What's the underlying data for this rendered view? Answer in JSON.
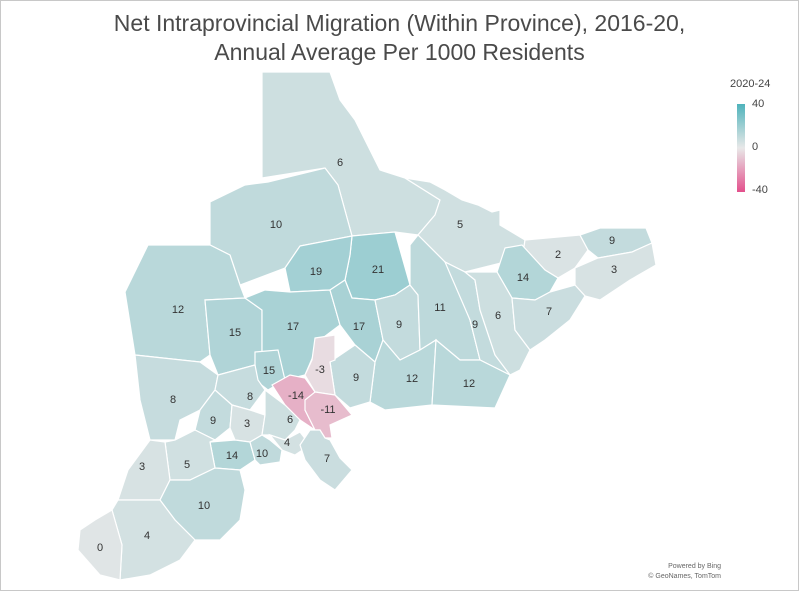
{
  "title": {
    "line1": "Net Intraprovincial Migration (Within Province), 2016-20,",
    "line2": "Annual Average Per 1000 Residents"
  },
  "legend": {
    "title": "2020-24",
    "max_label": "40",
    "mid_label": "0",
    "min_label": "-40",
    "colors": {
      "high": "#4fb3bb",
      "mid": "#e8e8e8",
      "low": "#e3508c"
    }
  },
  "attribution": {
    "line1": "Powered by Bing",
    "line2": "© GeoNames, TomTom"
  },
  "map_data": {
    "scale": {
      "min": -40,
      "mid": 0,
      "max": 40
    },
    "regions": [
      {
        "id": "r-north",
        "value": "6"
      },
      {
        "id": "r-northwest",
        "value": "10"
      },
      {
        "id": "r-northeast",
        "value": "5"
      },
      {
        "id": "r-ne-center",
        "value": "2"
      },
      {
        "id": "r-ne-top",
        "value": "9"
      },
      {
        "id": "r-ne-east",
        "value": "3"
      },
      {
        "id": "r-central-21",
        "value": "21"
      },
      {
        "id": "r-central-19",
        "value": "19"
      },
      {
        "id": "r-east-14",
        "value": "14"
      },
      {
        "id": "r-west-12",
        "value": "12"
      },
      {
        "id": "r-west-15",
        "value": "15"
      },
      {
        "id": "r-central-17a",
        "value": "17"
      },
      {
        "id": "r-central-17b",
        "value": "17"
      },
      {
        "id": "r-central-9",
        "value": "9"
      },
      {
        "id": "r-east-11",
        "value": "11"
      },
      {
        "id": "r-east-9",
        "value": "9"
      },
      {
        "id": "r-east-6",
        "value": "6"
      },
      {
        "id": "r-east-7",
        "value": "7"
      },
      {
        "id": "r-south-12a",
        "value": "12"
      },
      {
        "id": "r-south-12b",
        "value": "12"
      },
      {
        "id": "r-south-9",
        "value": "9"
      },
      {
        "id": "r-south-15",
        "value": "15"
      },
      {
        "id": "r-gta-neg3",
        "value": "-3"
      },
      {
        "id": "r-gta-neg14",
        "value": "-14"
      },
      {
        "id": "r-gta-neg11",
        "value": "-11"
      },
      {
        "id": "r-sw-8a",
        "value": "8"
      },
      {
        "id": "r-sw-8b",
        "value": "8"
      },
      {
        "id": "r-sw-9",
        "value": "9"
      },
      {
        "id": "r-sw-3a",
        "value": "3"
      },
      {
        "id": "r-sw-6",
        "value": "6"
      },
      {
        "id": "r-sw-4a",
        "value": "4"
      },
      {
        "id": "r-sw-7",
        "value": "7"
      },
      {
        "id": "r-sw-14",
        "value": "14"
      },
      {
        "id": "r-sw-10a",
        "value": "10"
      },
      {
        "id": "r-sw-5",
        "value": "5"
      },
      {
        "id": "r-sw-3b",
        "value": "3"
      },
      {
        "id": "r-sw-10b",
        "value": "10"
      },
      {
        "id": "r-sw-4b",
        "value": "4"
      },
      {
        "id": "r-sw-0",
        "value": "0"
      }
    ]
  }
}
